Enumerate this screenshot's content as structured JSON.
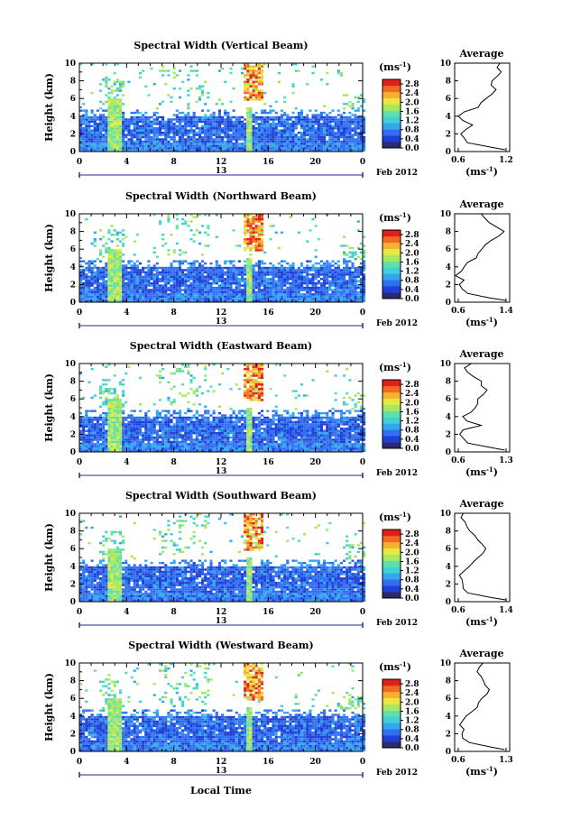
{
  "figure": {
    "x_axis_label": "Local Time",
    "date_label": "Feb 2012",
    "x_ticks": [
      "0",
      "4",
      "8",
      "12",
      "16",
      "20",
      "0"
    ],
    "day_marker": "13",
    "height_label": "Height (km)",
    "y_ticks": [
      "0",
      "2",
      "4",
      "6",
      "8",
      "10"
    ],
    "colorbar_unit": "(ms",
    "colorbar_unit_exp": "-1",
    "colorbar_unit_close": ")",
    "colorbar_ticks": [
      "0.0",
      "0.4",
      "0.8",
      "1.2",
      "1.6",
      "2.0",
      "2.4",
      "2.8"
    ],
    "average_title": "Average",
    "average_xlabel": "(ms",
    "average_xlabel_exp": "-1",
    "average_xlabel_close": ")",
    "colors": [
      "#2a2a6e",
      "#1f3fd6",
      "#2f6ff0",
      "#34a6ee",
      "#3fd0d8",
      "#5fe0a8",
      "#a8e860",
      "#e8e840",
      "#f8b030",
      "#f06a20",
      "#e02018"
    ]
  },
  "chart_data": [
    {
      "type": "heatmap",
      "title": "Spectral Width (Vertical Beam)",
      "x_range_hours": [
        0,
        24
      ],
      "y_range_km": [
        0,
        10
      ],
      "color_range_ms": [
        0.0,
        3.0
      ],
      "average": {
        "title": "Average",
        "x_ticks": [
          "0.6",
          "1.2"
        ],
        "xlim": [
          0.6,
          1.2
        ],
        "profile": [
          [
            0.2,
            1.15
          ],
          [
            0.5,
            1.0
          ],
          [
            1.0,
            0.75
          ],
          [
            1.5,
            0.7
          ],
          [
            2.0,
            0.68
          ],
          [
            2.5,
            0.72
          ],
          [
            3.0,
            0.8
          ],
          [
            3.5,
            0.7
          ],
          [
            4.0,
            0.65
          ],
          [
            4.5,
            0.72
          ],
          [
            5.0,
            0.85
          ],
          [
            5.5,
            0.9
          ],
          [
            6.0,
            0.95
          ],
          [
            6.5,
            1.0
          ],
          [
            7.0,
            1.05
          ],
          [
            7.5,
            1.0
          ],
          [
            8.0,
            1.02
          ],
          [
            8.5,
            1.05
          ],
          [
            9.0,
            1.1
          ],
          [
            9.5,
            1.05
          ],
          [
            10.0,
            1.1
          ]
        ]
      }
    },
    {
      "type": "heatmap",
      "title": "Spectral Width (Northward Beam)",
      "x_range_hours": [
        0,
        24
      ],
      "y_range_km": [
        0,
        10
      ],
      "color_range_ms": [
        0.0,
        3.0
      ],
      "average": {
        "title": "Average",
        "x_ticks": [
          "0.6",
          "1.4"
        ],
        "xlim": [
          0.6,
          1.4
        ],
        "profile": [
          [
            0.2,
            1.35
          ],
          [
            0.5,
            1.1
          ],
          [
            1.0,
            0.8
          ],
          [
            1.5,
            0.72
          ],
          [
            2.0,
            0.68
          ],
          [
            2.5,
            0.72
          ],
          [
            3.0,
            0.62
          ],
          [
            3.5,
            0.7
          ],
          [
            4.0,
            0.72
          ],
          [
            4.5,
            0.8
          ],
          [
            5.0,
            0.9
          ],
          [
            5.5,
            0.95
          ],
          [
            6.0,
            1.0
          ],
          [
            6.5,
            1.05
          ],
          [
            7.0,
            1.15
          ],
          [
            7.5,
            1.25
          ],
          [
            8.0,
            1.3
          ],
          [
            8.5,
            1.2
          ],
          [
            9.0,
            1.1
          ],
          [
            9.5,
            1.05
          ],
          [
            10.0,
            1.0
          ]
        ]
      }
    },
    {
      "type": "heatmap",
      "title": "Spectral Width (Eastward Beam)",
      "x_range_hours": [
        0,
        24
      ],
      "y_range_km": [
        0,
        10
      ],
      "color_range_ms": [
        0.0,
        3.0
      ],
      "average": {
        "title": "Average",
        "x_ticks": [
          "0.6",
          "1.3"
        ],
        "xlim": [
          0.6,
          1.3
        ],
        "profile": [
          [
            0.2,
            1.25
          ],
          [
            0.5,
            1.05
          ],
          [
            1.0,
            0.78
          ],
          [
            1.5,
            0.7
          ],
          [
            2.0,
            0.68
          ],
          [
            2.5,
            0.72
          ],
          [
            3.0,
            0.95
          ],
          [
            3.5,
            0.75
          ],
          [
            4.0,
            0.7
          ],
          [
            4.5,
            0.8
          ],
          [
            5.0,
            0.85
          ],
          [
            5.5,
            0.9
          ],
          [
            6.0,
            0.88
          ],
          [
            6.5,
            0.95
          ],
          [
            7.0,
            1.0
          ],
          [
            7.5,
            0.92
          ],
          [
            8.0,
            0.95
          ],
          [
            8.5,
            0.85
          ],
          [
            9.0,
            0.78
          ],
          [
            9.5,
            0.72
          ],
          [
            10.0,
            0.8
          ]
        ]
      }
    },
    {
      "type": "heatmap",
      "title": "Spectral Width (Southward Beam)",
      "x_range_hours": [
        0,
        24
      ],
      "y_range_km": [
        0,
        10
      ],
      "color_range_ms": [
        0.0,
        3.0
      ],
      "average": {
        "title": "Average",
        "x_ticks": [
          "0.6",
          "1.4"
        ],
        "xlim": [
          0.6,
          1.4
        ],
        "profile": [
          [
            0.2,
            1.35
          ],
          [
            0.5,
            1.1
          ],
          [
            1.0,
            0.8
          ],
          [
            1.5,
            0.72
          ],
          [
            2.0,
            0.7
          ],
          [
            2.5,
            0.72
          ],
          [
            3.0,
            0.66
          ],
          [
            3.5,
            0.75
          ],
          [
            4.0,
            0.8
          ],
          [
            4.5,
            0.88
          ],
          [
            5.0,
            0.95
          ],
          [
            5.5,
            1.0
          ],
          [
            6.0,
            1.05
          ],
          [
            6.5,
            1.0
          ],
          [
            7.0,
            0.95
          ],
          [
            7.5,
            0.9
          ],
          [
            8.0,
            0.82
          ],
          [
            8.5,
            0.78
          ],
          [
            9.0,
            0.75
          ],
          [
            9.5,
            0.7
          ],
          [
            10.0,
            0.72
          ]
        ]
      }
    },
    {
      "type": "heatmap",
      "title": "Spectral Width (Westward Beam)",
      "x_range_hours": [
        0,
        24
      ],
      "y_range_km": [
        0,
        10
      ],
      "color_range_ms": [
        0.0,
        3.0
      ],
      "average": {
        "title": "Average",
        "x_ticks": [
          "0.6",
          "1.3"
        ],
        "xlim": [
          0.6,
          1.3
        ],
        "profile": [
          [
            0.2,
            1.25
          ],
          [
            0.5,
            1.05
          ],
          [
            1.0,
            0.78
          ],
          [
            1.5,
            0.7
          ],
          [
            2.0,
            0.68
          ],
          [
            2.5,
            0.72
          ],
          [
            3.0,
            0.65
          ],
          [
            3.5,
            0.72
          ],
          [
            4.0,
            0.75
          ],
          [
            4.5,
            0.82
          ],
          [
            5.0,
            0.88
          ],
          [
            5.5,
            0.92
          ],
          [
            6.0,
            0.95
          ],
          [
            6.5,
            1.0
          ],
          [
            7.0,
            1.05
          ],
          [
            7.5,
            1.0
          ],
          [
            8.0,
            0.95
          ],
          [
            8.5,
            0.92
          ],
          [
            9.0,
            0.9
          ],
          [
            9.5,
            0.92
          ],
          [
            10.0,
            0.95
          ]
        ]
      }
    }
  ]
}
